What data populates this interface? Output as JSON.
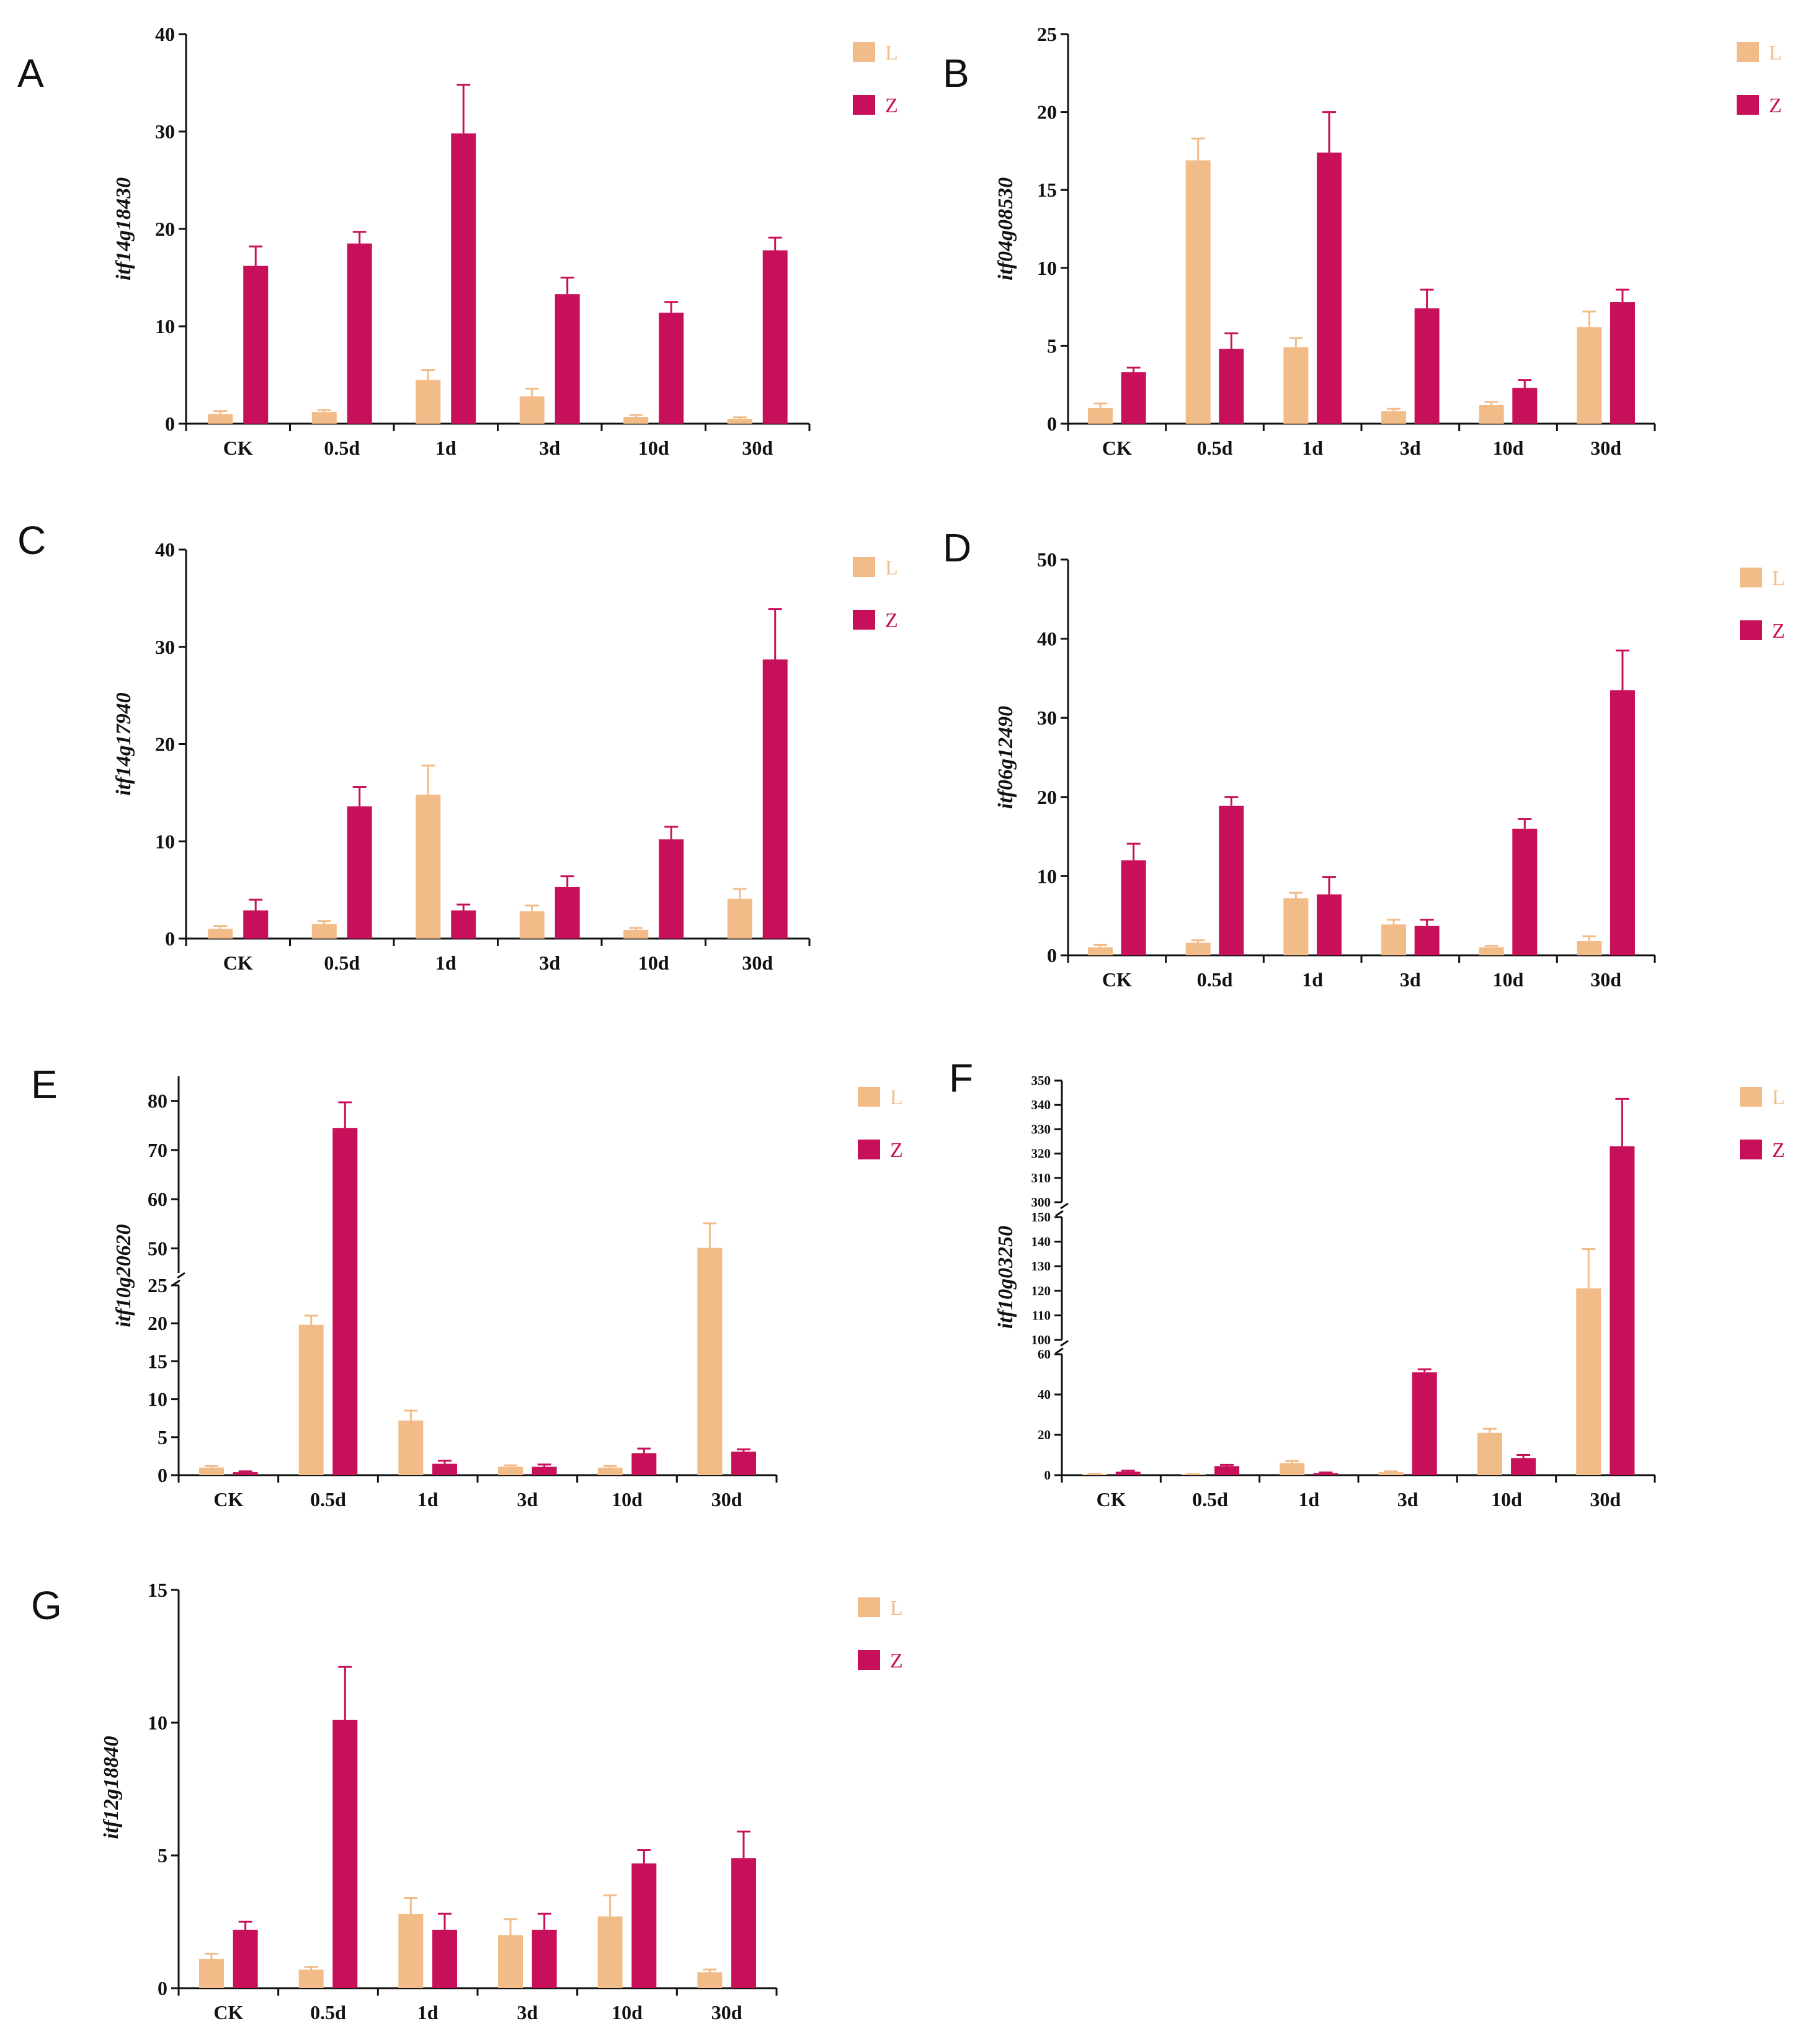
{
  "figure": {
    "legend_labels": [
      "L",
      "Z"
    ],
    "colors": {
      "L": "#F2BC88",
      "Z": "#C8105A",
      "axis": "#111111"
    }
  },
  "chart_data": [
    {
      "panel": "A",
      "type": "bar",
      "ylabel": "itf14g18430",
      "categories": [
        "CK",
        "0.5d",
        "1d",
        "3d",
        "10d",
        "30d"
      ],
      "series": [
        {
          "name": "L",
          "values": [
            1.0,
            1.2,
            4.5,
            2.8,
            0.7,
            0.5
          ],
          "errors": [
            0.3,
            0.2,
            1.0,
            0.8,
            0.2,
            0.15
          ]
        },
        {
          "name": "Z",
          "values": [
            16.2,
            18.5,
            29.8,
            13.3,
            11.4,
            17.8
          ],
          "errors": [
            2.0,
            1.2,
            5.0,
            1.7,
            1.1,
            1.3
          ]
        }
      ],
      "yticks": [
        0,
        10,
        20,
        30,
        40
      ]
    },
    {
      "panel": "B",
      "type": "bar",
      "ylabel": "itf04g08530",
      "categories": [
        "CK",
        "0.5d",
        "1d",
        "3d",
        "10d",
        "30d"
      ],
      "series": [
        {
          "name": "L",
          "values": [
            1.0,
            16.9,
            4.9,
            0.8,
            1.2,
            6.2
          ],
          "errors": [
            0.3,
            1.4,
            0.6,
            0.15,
            0.2,
            1.0
          ]
        },
        {
          "name": "Z",
          "values": [
            3.3,
            4.8,
            17.4,
            7.4,
            2.3,
            7.8
          ],
          "errors": [
            0.3,
            1.0,
            2.6,
            1.2,
            0.5,
            0.8
          ]
        }
      ],
      "yticks": [
        0,
        5,
        10,
        15,
        20,
        25
      ]
    },
    {
      "panel": "C",
      "type": "bar",
      "ylabel": "itf14g17940",
      "categories": [
        "CK",
        "0.5d",
        "1d",
        "3d",
        "10d",
        "30d"
      ],
      "series": [
        {
          "name": "L",
          "values": [
            1.0,
            1.5,
            14.8,
            2.8,
            0.9,
            4.1
          ],
          "errors": [
            0.3,
            0.3,
            3.0,
            0.6,
            0.2,
            1.0
          ]
        },
        {
          "name": "Z",
          "values": [
            2.9,
            13.6,
            2.9,
            5.3,
            10.2,
            28.7
          ],
          "errors": [
            1.1,
            2.0,
            0.6,
            1.1,
            1.3,
            5.2
          ]
        }
      ],
      "yticks": [
        0,
        10,
        20,
        30,
        40
      ]
    },
    {
      "panel": "D",
      "type": "bar",
      "ylabel": "itf06g12490",
      "categories": [
        "CK",
        "0.5d",
        "1d",
        "3d",
        "10d",
        "30d"
      ],
      "series": [
        {
          "name": "L",
          "values": [
            1.0,
            1.6,
            7.2,
            3.9,
            1.0,
            1.8
          ],
          "errors": [
            0.3,
            0.3,
            0.7,
            0.6,
            0.2,
            0.6
          ]
        },
        {
          "name": "Z",
          "values": [
            12.0,
            18.9,
            7.7,
            3.7,
            16.0,
            33.5
          ],
          "errors": [
            2.1,
            1.1,
            2.2,
            0.8,
            1.2,
            5.0
          ]
        }
      ],
      "yticks": [
        0,
        10,
        20,
        30,
        40,
        50
      ]
    },
    {
      "panel": "E",
      "type": "bar",
      "ylabel": "itf10g20620",
      "broken_axis": true,
      "categories": [
        "CK",
        "0.5d",
        "1d",
        "3d",
        "10d",
        "30d"
      ],
      "series": [
        {
          "name": "L",
          "values": [
            1.0,
            19.8,
            7.2,
            1.1,
            1.0,
            50.1
          ],
          "errors": [
            0.2,
            1.2,
            1.3,
            0.2,
            0.2,
            5.0
          ]
        },
        {
          "name": "Z",
          "values": [
            0.4,
            74.5,
            1.5,
            1.1,
            2.9,
            3.1
          ],
          "errors": [
            0.1,
            5.2,
            0.4,
            0.3,
            0.6,
            0.3
          ]
        }
      ],
      "yticks": [
        0,
        5,
        10,
        15,
        20,
        25,
        50,
        60,
        70,
        80
      ]
    },
    {
      "panel": "F",
      "type": "bar",
      "ylabel": "itf10g03250",
      "broken_axis": true,
      "categories": [
        "CK",
        "0.5d",
        "1d",
        "3d",
        "10d",
        "30d"
      ],
      "series": [
        {
          "name": "L",
          "values": [
            0.5,
            0.4,
            6.0,
            1.5,
            21.0,
            121.0
          ],
          "errors": [
            0.1,
            0.1,
            1.0,
            0.4,
            2.0,
            16.0
          ]
        },
        {
          "name": "Z",
          "values": [
            1.7,
            4.5,
            1.0,
            51.0,
            8.5,
            323.0
          ],
          "errors": [
            0.5,
            0.6,
            0.3,
            1.5,
            1.5,
            19.5
          ]
        }
      ],
      "yticks": [
        0,
        20,
        40,
        60,
        100,
        110,
        120,
        130,
        140,
        150,
        300,
        310,
        320,
        330,
        340,
        350
      ]
    },
    {
      "panel": "G",
      "type": "bar",
      "ylabel": "itf12g18840",
      "categories": [
        "CK",
        "0.5d",
        "1d",
        "3d",
        "10d",
        "30d"
      ],
      "series": [
        {
          "name": "L",
          "values": [
            1.1,
            0.7,
            2.8,
            2.0,
            2.7,
            0.6
          ],
          "errors": [
            0.2,
            0.1,
            0.6,
            0.6,
            0.8,
            0.1
          ]
        },
        {
          "name": "Z",
          "values": [
            2.2,
            10.1,
            2.2,
            2.2,
            4.7,
            4.9
          ],
          "errors": [
            0.3,
            2.0,
            0.6,
            0.6,
            0.5,
            1.0
          ]
        }
      ],
      "yticks": [
        0,
        5,
        10,
        15
      ]
    }
  ]
}
